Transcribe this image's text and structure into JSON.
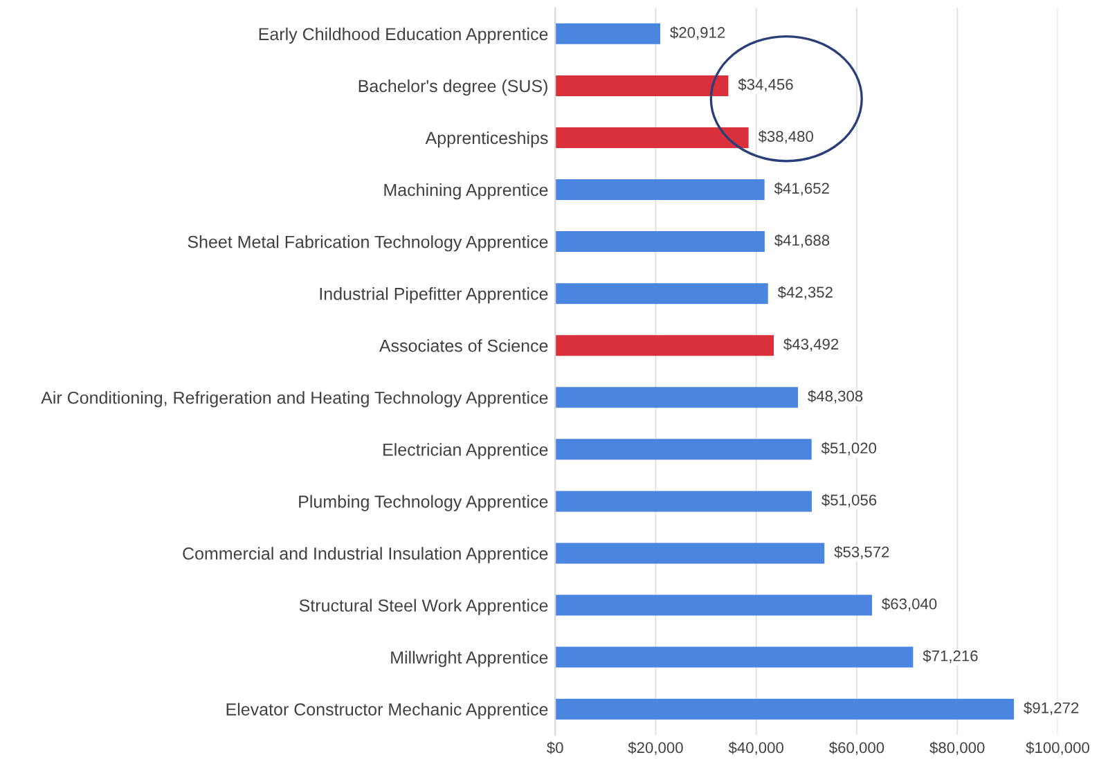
{
  "chart_data": {
    "type": "bar",
    "orientation": "horizontal",
    "categories": [
      "Early Childhood Education Apprentice",
      "Bachelor's degree (SUS)",
      "Apprenticeships",
      "Machining Apprentice",
      "Sheet Metal Fabrication Technology Apprentice",
      "Industrial Pipefitter Apprentice",
      "Associates of Science",
      "Air Conditioning, Refrigeration and Heating Technology Apprentice",
      "Electrician Apprentice",
      "Plumbing Technology Apprentice",
      "Commercial and Industrial Insulation Apprentice",
      "Structural Steel Work Apprentice",
      "Millwright Apprentice",
      "Elevator Constructor Mechanic Apprentice"
    ],
    "values": [
      20912,
      34456,
      38480,
      41652,
      41688,
      42352,
      43492,
      48308,
      51020,
      51056,
      53572,
      63040,
      71216,
      91272
    ],
    "colors": [
      "#4a86e0",
      "#d9303c",
      "#d9303c",
      "#4a86e0",
      "#4a86e0",
      "#4a86e0",
      "#d9303c",
      "#4a86e0",
      "#4a86e0",
      "#4a86e0",
      "#4a86e0",
      "#4a86e0",
      "#4a86e0",
      "#4a86e0"
    ],
    "value_labels": [
      "$20,912",
      "$34,456",
      "$38,480",
      "$41,652",
      "$41,688",
      "$42,352",
      "$43,492",
      "$48,308",
      "$51,020",
      "$51,056",
      "$53,572",
      "$63,040",
      "$71,216",
      "$91,272"
    ],
    "xlim": [
      0,
      100000
    ],
    "xticks": [
      {
        "value": 0,
        "label": "$0"
      },
      {
        "value": 20000,
        "label": "$20,000"
      },
      {
        "value": 40000,
        "label": "$40,000"
      },
      {
        "value": 60000,
        "label": "$60,000"
      },
      {
        "value": 80000,
        "label": "$80,000"
      },
      {
        "value": 100000,
        "label": "$100,000"
      }
    ],
    "grid": "x"
  }
}
